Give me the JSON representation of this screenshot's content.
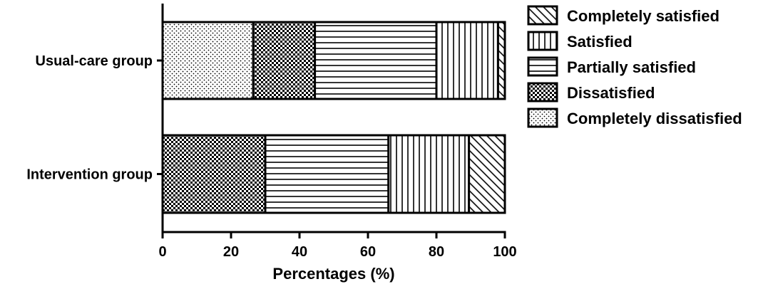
{
  "chart_data": {
    "type": "bar",
    "orientation": "horizontal",
    "stacked": true,
    "title": "",
    "xlabel": "Percentages (%)",
    "ylabel": "",
    "xlim": [
      0,
      100
    ],
    "xticks": [
      "0",
      "20",
      "40",
      "60",
      "80",
      "100"
    ],
    "categories": [
      "Usual-care group",
      "Intervention group"
    ],
    "series": [
      {
        "name": "Completely dissatisfied",
        "pattern": "dots",
        "values": [
          26.5,
          0
        ]
      },
      {
        "name": "Dissatisfied",
        "pattern": "checker",
        "values": [
          18,
          30
        ]
      },
      {
        "name": "Partially satisfied",
        "pattern": "horizontal-lines",
        "values": [
          35.5,
          36
        ]
      },
      {
        "name": "Satisfied",
        "pattern": "vertical-lines",
        "values": [
          18,
          23.5
        ]
      },
      {
        "name": "Completely satisfied",
        "pattern": "diagonal-lines",
        "values": [
          2,
          10.5
        ]
      }
    ],
    "legend": {
      "placement": "right",
      "order": [
        "Completely satisfied",
        "Satisfied",
        "Partially satisfied",
        "Dissatisfied",
        "Completely dissatisfied"
      ]
    },
    "grid": false
  }
}
